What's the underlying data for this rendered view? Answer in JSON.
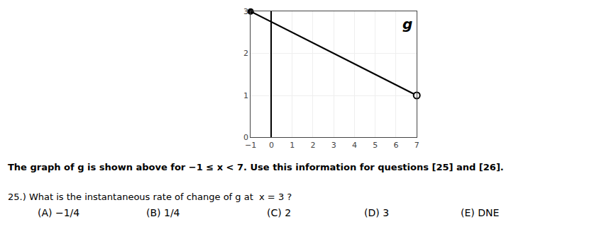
{
  "chart_data": {
    "type": "line",
    "series": [
      {
        "type": "line",
        "x": [
          -1,
          7
        ],
        "values": [
          3,
          1
        ],
        "color": "#000000"
      },
      {
        "type": "scatter",
        "x": [
          -1
        ],
        "values": [
          3
        ],
        "marker": "circle",
        "color": "#000000"
      },
      {
        "type": "scatter",
        "x": [
          7
        ],
        "values": [
          1
        ],
        "marker": "circle-open",
        "color": "#000000"
      }
    ],
    "xlim": [
      -1,
      7
    ],
    "ylim": [
      0,
      3
    ],
    "xticks": [
      -1,
      0,
      1,
      2,
      3,
      4,
      5,
      6,
      7
    ],
    "yticks": [
      0,
      1,
      2,
      3
    ],
    "grid": true,
    "annotations": [
      "g",
      "The graph of g is shown above for −1 ≤ x < 7. Use this information for questions [25] and [26].",
      "25.) What is the instantaneous rate of change of g at  x = 3 ?",
      "(A) −1/4",
      "(B) 1/4",
      "(C) 2",
      "(D) 3",
      "(E) DNE"
    ]
  }
}
